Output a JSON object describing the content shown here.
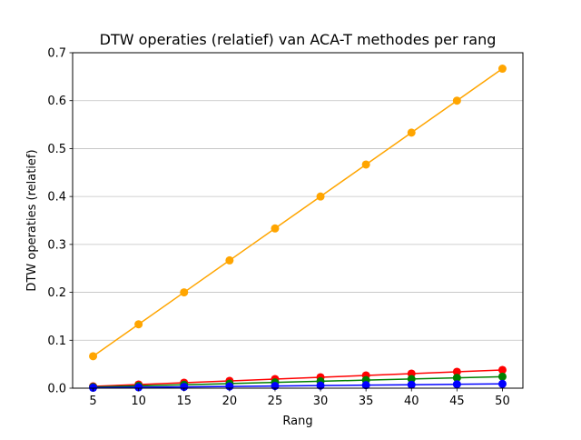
{
  "chart_data": {
    "type": "line",
    "title": "DTW operaties (relatief) van ACA-T methodes per rang",
    "xlabel": "Rang",
    "ylabel": "DTW operaties (relatief)",
    "x": [
      5,
      10,
      15,
      20,
      25,
      30,
      35,
      40,
      45,
      50
    ],
    "xticks": [
      "5",
      "10",
      "15",
      "20",
      "25",
      "30",
      "35",
      "40",
      "45",
      "50"
    ],
    "yticks": [
      "0.0",
      "0.1",
      "0.2",
      "0.3",
      "0.4",
      "0.5",
      "0.6",
      "0.7"
    ],
    "xlim": [
      2.75,
      52.25
    ],
    "ylim": [
      0,
      0.7
    ],
    "grid": "horizontal",
    "series": [
      {
        "color": "#ffa500",
        "values": [
          0.0667,
          0.1333,
          0.2,
          0.2667,
          0.3333,
          0.4,
          0.4667,
          0.5333,
          0.6,
          0.6667
        ]
      },
      {
        "color": "#ff0000",
        "values": [
          0.0038,
          0.0076,
          0.0114,
          0.0152,
          0.019,
          0.0228,
          0.0266,
          0.0304,
          0.0342,
          0.038
        ]
      },
      {
        "color": "#008000",
        "values": [
          0.0024,
          0.0048,
          0.0072,
          0.0096,
          0.012,
          0.0144,
          0.0168,
          0.0192,
          0.0216,
          0.024
        ]
      },
      {
        "color": "#0000ff",
        "values": [
          0.0009,
          0.0018,
          0.0027,
          0.0036,
          0.0045,
          0.0054,
          0.0063,
          0.0072,
          0.0081,
          0.009
        ]
      }
    ]
  }
}
